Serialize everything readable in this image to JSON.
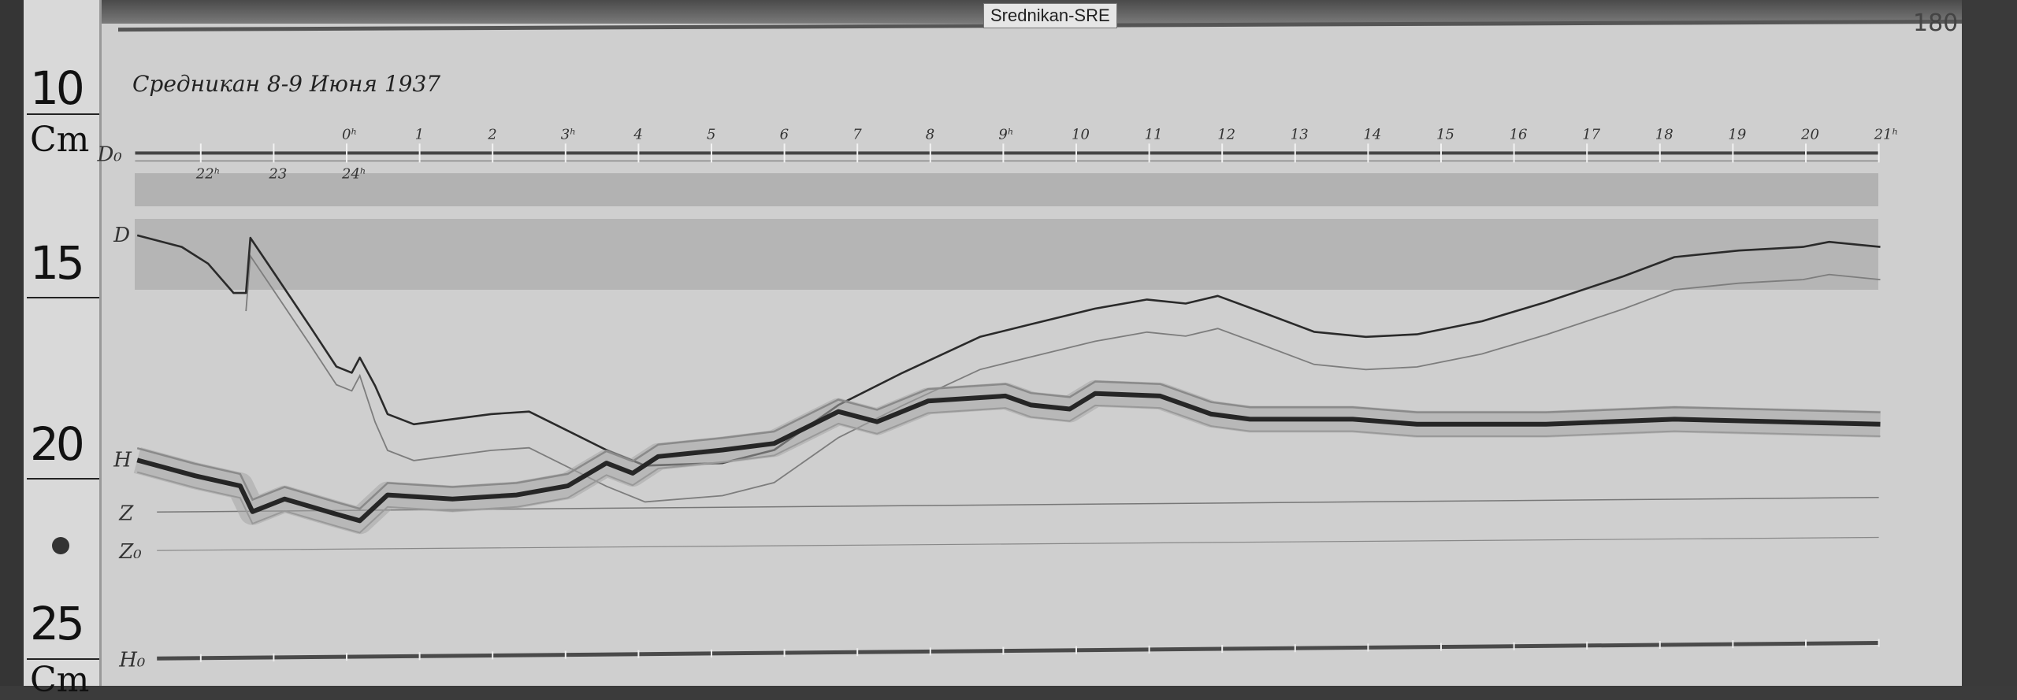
{
  "station_tag": "Srednikan-SRE",
  "sheet_number": "180",
  "handwritten_title": "Средникан 8-9 Июня 1937",
  "ruler": {
    "unit": "Cm",
    "marks": [
      "10",
      "15",
      "20",
      "25"
    ]
  },
  "colors": {
    "paper": "#cfcfcf",
    "trace": "#2a2a2a",
    "trace_shadow": "#8c8c8c",
    "band_dark": "#a9a9a9",
    "band_light": "#b4b4b4",
    "frame": "#3b3b3b"
  },
  "chart_data": {
    "type": "line",
    "title": "Средникан 8-9 Июня 1937",
    "xlabel": "",
    "ylabel": "Cm",
    "y_axis_note": "ruler scale, increasing downward",
    "xlim": [
      -2.9,
      21.1
    ],
    "ylim": [
      9,
      26
    ],
    "grid": false,
    "x_ticks_top": [
      {
        "hour": 0,
        "label": "0ʰ"
      },
      {
        "hour": 1,
        "label": "1"
      },
      {
        "hour": 2,
        "label": "2"
      },
      {
        "hour": 3,
        "label": "3ʰ"
      },
      {
        "hour": 4,
        "label": "4"
      },
      {
        "hour": 5,
        "label": "5"
      },
      {
        "hour": 6,
        "label": "6"
      },
      {
        "hour": 7,
        "label": "7"
      },
      {
        "hour": 8,
        "label": "8"
      },
      {
        "hour": 9,
        "label": "9ʰ"
      },
      {
        "hour": 10,
        "label": "10"
      },
      {
        "hour": 11,
        "label": "11"
      },
      {
        "hour": 12,
        "label": "12"
      },
      {
        "hour": 13,
        "label": "13"
      },
      {
        "hour": 14,
        "label": "14"
      },
      {
        "hour": 15,
        "label": "15"
      },
      {
        "hour": 16,
        "label": "16"
      },
      {
        "hour": 17,
        "label": "17"
      },
      {
        "hour": 18,
        "label": "18"
      },
      {
        "hour": 19,
        "label": "19"
      },
      {
        "hour": 20,
        "label": "20"
      },
      {
        "hour": 21,
        "label": "21ʰ"
      }
    ],
    "x_ticks_bottom": [
      {
        "hour": -2,
        "label": "22ʰ"
      },
      {
        "hour": -1,
        "label": "23"
      },
      {
        "hour": 0,
        "label": "24ʰ"
      }
    ],
    "baselines": [
      {
        "name": "D₀",
        "values": [
          [
            -2.9,
            11.1
          ],
          [
            21.0,
            11.1
          ]
        ]
      },
      {
        "name": "Z",
        "values": [
          [
            -2.6,
            21.0
          ],
          [
            21.0,
            20.6
          ]
        ]
      },
      {
        "name": "Z₀",
        "values": [
          [
            -2.6,
            22.06
          ],
          [
            21.0,
            21.7
          ]
        ]
      },
      {
        "name": "H₀",
        "values": [
          [
            -2.6,
            25.04
          ],
          [
            21.0,
            24.61
          ]
        ]
      }
    ],
    "series": [
      {
        "name": "D",
        "values": [
          [
            -2.87,
            13.37
          ],
          [
            -2.26,
            13.69
          ],
          [
            -1.9,
            14.15
          ],
          [
            -1.55,
            14.96
          ],
          [
            -1.38,
            14.96
          ],
          [
            -1.32,
            13.44
          ],
          [
            -1.02,
            14.33
          ],
          [
            -0.49,
            15.92
          ],
          [
            -0.14,
            16.99
          ],
          [
            0.07,
            17.16
          ],
          [
            0.18,
            16.74
          ],
          [
            0.39,
            17.52
          ],
          [
            0.56,
            18.3
          ],
          [
            0.92,
            18.58
          ],
          [
            1.98,
            18.3
          ],
          [
            2.5,
            18.23
          ],
          [
            3.03,
            18.76
          ],
          [
            3.56,
            19.29
          ],
          [
            4.09,
            19.72
          ],
          [
            5.15,
            19.65
          ],
          [
            5.86,
            19.29
          ],
          [
            6.74,
            18.05
          ],
          [
            7.62,
            17.16
          ],
          [
            8.68,
            16.17
          ],
          [
            9.38,
            15.82
          ],
          [
            10.26,
            15.39
          ],
          [
            10.97,
            15.14
          ],
          [
            11.5,
            15.25
          ],
          [
            11.94,
            15.04
          ],
          [
            12.56,
            15.5
          ],
          [
            13.26,
            16.03
          ],
          [
            13.97,
            16.17
          ],
          [
            14.67,
            16.1
          ],
          [
            15.56,
            15.74
          ],
          [
            16.44,
            15.21
          ],
          [
            17.5,
            14.5
          ],
          [
            18.2,
            13.97
          ],
          [
            19.08,
            13.79
          ],
          [
            19.96,
            13.69
          ],
          [
            20.32,
            13.55
          ],
          [
            21.02,
            13.69
          ]
        ]
      },
      {
        "name": "H",
        "values": [
          [
            -2.87,
            19.57
          ],
          [
            -2.08,
            20.0
          ],
          [
            -1.46,
            20.28
          ],
          [
            -1.29,
            20.99
          ],
          [
            -0.85,
            20.64
          ],
          [
            -0.14,
            21.06
          ],
          [
            0.18,
            21.24
          ],
          [
            0.56,
            20.53
          ],
          [
            1.45,
            20.64
          ],
          [
            2.33,
            20.53
          ],
          [
            3.03,
            20.28
          ],
          [
            3.56,
            19.65
          ],
          [
            3.92,
            19.93
          ],
          [
            4.27,
            19.47
          ],
          [
            5.15,
            19.29
          ],
          [
            5.86,
            19.11
          ],
          [
            6.74,
            18.23
          ],
          [
            7.27,
            18.51
          ],
          [
            7.97,
            17.94
          ],
          [
            9.03,
            17.8
          ],
          [
            9.38,
            18.05
          ],
          [
            9.91,
            18.16
          ],
          [
            10.26,
            17.73
          ],
          [
            11.15,
            17.8
          ],
          [
            11.85,
            18.3
          ],
          [
            12.38,
            18.44
          ],
          [
            13.79,
            18.44
          ],
          [
            14.67,
            18.58
          ],
          [
            16.44,
            18.58
          ],
          [
            18.2,
            18.44
          ],
          [
            21.02,
            18.58
          ]
        ]
      }
    ]
  }
}
